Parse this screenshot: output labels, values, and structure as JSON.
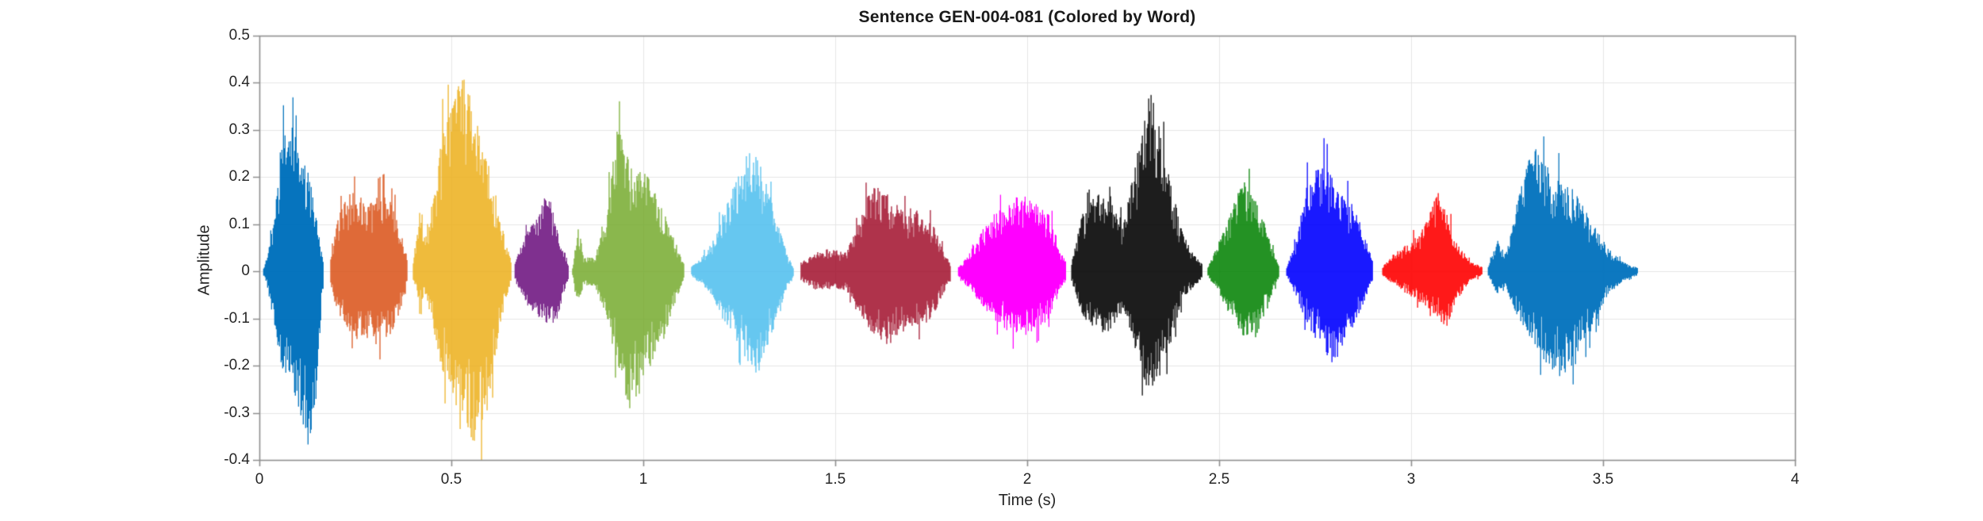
{
  "title": "Sentence GEN-004-081 (Colored by Word)",
  "colors": {
    "background": "#ffffff",
    "axis_box": "#8f8f8f",
    "grid": "#e6e6e6",
    "text": "#262626",
    "title_text": "#1a1a1a"
  },
  "chart_data": {
    "type": "line",
    "subtype": "audio-waveform-colored-by-word",
    "title": "Sentence GEN-004-081 (Colored by Word)",
    "xlabel": "Time (s)",
    "ylabel": "Amplitude",
    "xlim": [
      0,
      4
    ],
    "ylim": [
      -0.4,
      0.5
    ],
    "grid": true,
    "x_ticks": [
      {
        "value": 0,
        "label": "0"
      },
      {
        "value": 0.5,
        "label": "0.5"
      },
      {
        "value": 1,
        "label": "1"
      },
      {
        "value": 1.5,
        "label": "1.5"
      },
      {
        "value": 2,
        "label": "2"
      },
      {
        "value": 2.5,
        "label": "2.5"
      },
      {
        "value": 3,
        "label": "3"
      },
      {
        "value": 3.5,
        "label": "3.5"
      },
      {
        "value": 4,
        "label": "4"
      }
    ],
    "y_ticks": [
      {
        "value": 0.5,
        "label": "0.5"
      },
      {
        "value": 0.4,
        "label": "0.4"
      },
      {
        "value": 0.3,
        "label": "0.3"
      },
      {
        "value": 0.2,
        "label": "0.2"
      },
      {
        "value": 0.1,
        "label": "0.1"
      },
      {
        "value": 0,
        "label": "0"
      },
      {
        "value": -0.1,
        "label": "-0.1"
      },
      {
        "value": -0.2,
        "label": "-0.2"
      },
      {
        "value": -0.3,
        "label": "-0.3"
      },
      {
        "value": -0.4,
        "label": "-0.4"
      }
    ],
    "segments": [
      {
        "word": 1,
        "color": "#0072BD",
        "start": 0.01,
        "end": 0.165,
        "env": [
          [
            0,
            0.01,
            0.01
          ],
          [
            0.06,
            0.03,
            0.03
          ],
          [
            0.16,
            0.1,
            0.1
          ],
          [
            0.3,
            0.28,
            0.2
          ],
          [
            0.45,
            0.32,
            0.26
          ],
          [
            0.6,
            0.26,
            0.3
          ],
          [
            0.75,
            0.22,
            0.37
          ],
          [
            0.88,
            0.12,
            0.28
          ],
          [
            1,
            0.02,
            0.03
          ]
        ]
      },
      {
        "word": 2,
        "color": "#D95319",
        "start": 0.185,
        "end": 0.385,
        "env": [
          [
            0,
            0.03,
            0.03
          ],
          [
            0.1,
            0.12,
            0.1
          ],
          [
            0.25,
            0.17,
            0.14
          ],
          [
            0.5,
            0.15,
            0.16
          ],
          [
            0.7,
            0.17,
            0.15
          ],
          [
            0.85,
            0.13,
            0.12
          ],
          [
            1,
            0.02,
            0.02
          ]
        ]
      },
      {
        "word": 3,
        "color": "#EDB120",
        "start": 0.4,
        "end": 0.655,
        "env": [
          [
            0,
            0.02,
            0.02
          ],
          [
            0.07,
            0.14,
            0.08
          ],
          [
            0.13,
            0.06,
            0.05
          ],
          [
            0.3,
            0.3,
            0.22
          ],
          [
            0.5,
            0.44,
            0.3
          ],
          [
            0.62,
            0.34,
            0.37
          ],
          [
            0.75,
            0.25,
            0.3
          ],
          [
            0.9,
            0.1,
            0.1
          ],
          [
            1,
            0.02,
            0.02
          ]
        ]
      },
      {
        "word": 4,
        "color": "#7E2F8E",
        "start": 0.665,
        "end": 0.805,
        "env": [
          [
            0,
            0.02,
            0.02
          ],
          [
            0.2,
            0.08,
            0.07
          ],
          [
            0.45,
            0.12,
            0.1
          ],
          [
            0.6,
            0.19,
            0.11
          ],
          [
            0.75,
            0.1,
            0.12
          ],
          [
            0.9,
            0.05,
            0.05
          ],
          [
            1,
            0.015,
            0.015
          ]
        ]
      },
      {
        "word": 5,
        "color": "#77AC30",
        "start": 0.815,
        "end": 1.105,
        "env": [
          [
            0,
            0.01,
            0.01
          ],
          [
            0.05,
            0.1,
            0.07
          ],
          [
            0.1,
            0.03,
            0.03
          ],
          [
            0.2,
            0.03,
            0.03
          ],
          [
            0.3,
            0.12,
            0.1
          ],
          [
            0.4,
            0.31,
            0.2
          ],
          [
            0.5,
            0.24,
            0.3
          ],
          [
            0.6,
            0.22,
            0.26
          ],
          [
            0.7,
            0.2,
            0.2
          ],
          [
            0.8,
            0.14,
            0.16
          ],
          [
            0.9,
            0.08,
            0.08
          ],
          [
            1,
            0.015,
            0.015
          ]
        ]
      },
      {
        "word": 6,
        "color": "#4DBEEE",
        "start": 1.125,
        "end": 1.39,
        "env": [
          [
            0,
            0.01,
            0.01
          ],
          [
            0.1,
            0.03,
            0.03
          ],
          [
            0.2,
            0.06,
            0.05
          ],
          [
            0.3,
            0.12,
            0.1
          ],
          [
            0.45,
            0.2,
            0.15
          ],
          [
            0.55,
            0.26,
            0.2
          ],
          [
            0.65,
            0.24,
            0.22
          ],
          [
            0.75,
            0.18,
            0.16
          ],
          [
            0.85,
            0.1,
            0.09
          ],
          [
            0.95,
            0.03,
            0.03
          ],
          [
            1,
            0.01,
            0.01
          ]
        ]
      },
      {
        "word": 7,
        "color": "#A2142F",
        "start": 1.41,
        "end": 1.8,
        "env": [
          [
            0,
            0.02,
            0.02
          ],
          [
            0.1,
            0.04,
            0.04
          ],
          [
            0.2,
            0.05,
            0.04
          ],
          [
            0.3,
            0.04,
            0.04
          ],
          [
            0.38,
            0.1,
            0.08
          ],
          [
            0.48,
            0.2,
            0.14
          ],
          [
            0.58,
            0.16,
            0.16
          ],
          [
            0.68,
            0.13,
            0.12
          ],
          [
            0.78,
            0.14,
            0.12
          ],
          [
            0.88,
            0.1,
            0.1
          ],
          [
            0.96,
            0.04,
            0.04
          ],
          [
            1,
            0.015,
            0.015
          ]
        ]
      },
      {
        "word": 8,
        "color": "#FF00FF",
        "start": 1.82,
        "end": 2.1,
        "env": [
          [
            0,
            0.01,
            0.01
          ],
          [
            0.1,
            0.04,
            0.04
          ],
          [
            0.25,
            0.1,
            0.08
          ],
          [
            0.4,
            0.14,
            0.12
          ],
          [
            0.55,
            0.17,
            0.14
          ],
          [
            0.7,
            0.15,
            0.13
          ],
          [
            0.85,
            0.12,
            0.1
          ],
          [
            0.95,
            0.05,
            0.04
          ],
          [
            1,
            0.02,
            0.02
          ]
        ]
      },
      {
        "word": 9,
        "color": "#000000",
        "start": 2.115,
        "end": 2.455,
        "env": [
          [
            0,
            0.02,
            0.02
          ],
          [
            0.08,
            0.12,
            0.1
          ],
          [
            0.2,
            0.17,
            0.14
          ],
          [
            0.32,
            0.14,
            0.12
          ],
          [
            0.4,
            0.1,
            0.08
          ],
          [
            0.5,
            0.25,
            0.18
          ],
          [
            0.58,
            0.41,
            0.25
          ],
          [
            0.66,
            0.32,
            0.24
          ],
          [
            0.75,
            0.2,
            0.16
          ],
          [
            0.85,
            0.08,
            0.06
          ],
          [
            0.95,
            0.03,
            0.03
          ],
          [
            1,
            0.015,
            0.015
          ]
        ]
      },
      {
        "word": 10,
        "color": "#008000",
        "start": 2.47,
        "end": 2.655,
        "env": [
          [
            0,
            0.01,
            0.01
          ],
          [
            0.12,
            0.05,
            0.04
          ],
          [
            0.3,
            0.12,
            0.09
          ],
          [
            0.5,
            0.2,
            0.14
          ],
          [
            0.65,
            0.16,
            0.15
          ],
          [
            0.8,
            0.1,
            0.09
          ],
          [
            0.95,
            0.03,
            0.03
          ],
          [
            1,
            0.01,
            0.01
          ]
        ]
      },
      {
        "word": 11,
        "color": "#0000FF",
        "start": 2.675,
        "end": 2.9,
        "env": [
          [
            0,
            0.01,
            0.01
          ],
          [
            0.1,
            0.06,
            0.05
          ],
          [
            0.25,
            0.2,
            0.12
          ],
          [
            0.4,
            0.24,
            0.16
          ],
          [
            0.55,
            0.2,
            0.2
          ],
          [
            0.7,
            0.16,
            0.14
          ],
          [
            0.82,
            0.12,
            0.1
          ],
          [
            0.93,
            0.06,
            0.05
          ],
          [
            1,
            0.02,
            0.02
          ]
        ]
      },
      {
        "word": 12,
        "color": "#FF0000",
        "start": 2.925,
        "end": 3.185,
        "env": [
          [
            0,
            0.01,
            0.01
          ],
          [
            0.12,
            0.04,
            0.03
          ],
          [
            0.25,
            0.06,
            0.05
          ],
          [
            0.4,
            0.09,
            0.07
          ],
          [
            0.55,
            0.17,
            0.1
          ],
          [
            0.65,
            0.12,
            0.12
          ],
          [
            0.75,
            0.06,
            0.06
          ],
          [
            0.88,
            0.02,
            0.02
          ],
          [
            1,
            0.01,
            0.01
          ]
        ]
      },
      {
        "word": 13,
        "color": "#0072BD",
        "start": 3.2,
        "end": 3.59,
        "env": [
          [
            0,
            0.01,
            0.01
          ],
          [
            0.06,
            0.07,
            0.05
          ],
          [
            0.12,
            0.04,
            0.04
          ],
          [
            0.2,
            0.16,
            0.1
          ],
          [
            0.3,
            0.27,
            0.16
          ],
          [
            0.4,
            0.22,
            0.2
          ],
          [
            0.5,
            0.2,
            0.23
          ],
          [
            0.6,
            0.16,
            0.18
          ],
          [
            0.7,
            0.1,
            0.12
          ],
          [
            0.8,
            0.05,
            0.05
          ],
          [
            0.9,
            0.02,
            0.02
          ],
          [
            1,
            0.008,
            0.008
          ]
        ]
      }
    ]
  }
}
